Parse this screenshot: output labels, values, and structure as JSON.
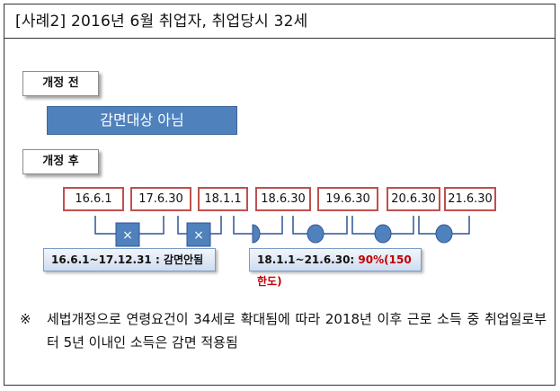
{
  "title": "[사례2] 2016년 6월 취업자, 취업당시 32세",
  "before": {
    "label": "개정 전",
    "status": "감면대상 아님"
  },
  "after": {
    "label": "개정 후",
    "dates": [
      "16.6.1",
      "17.6.30",
      "18.1.1",
      "18.6.30",
      "19.6.30",
      "20.6.30",
      "21.6.30"
    ],
    "periods": [
      {
        "range": "16.6.1~17.12.31",
        "sep": " : ",
        "result": "감면안됨"
      },
      {
        "range": "18.1.1~21.6.30: ",
        "result": "90%(150한도)"
      }
    ],
    "segment_markers": [
      "x-mark",
      "x-mark",
      "half-circle",
      "circle",
      "circle",
      "circle"
    ],
    "marker_symbol": "×"
  },
  "colors": {
    "blue_fill": "#4f81bd",
    "date_border": "#c0504d",
    "highlight_red": "#c00000"
  },
  "note": {
    "mark": "※",
    "text": "세법개정으로 연령요건이 34세로 확대됨에 따라 2018년 이후 근로 소득 중 취업일로부터 5년 이내인 소득은 감면 적용됨"
  }
}
